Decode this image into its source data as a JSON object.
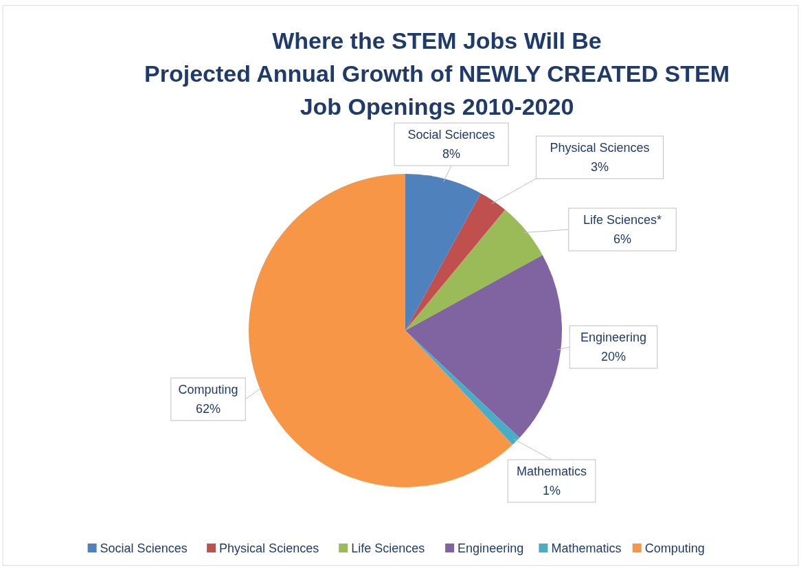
{
  "chart_data": {
    "type": "pie",
    "title": "Where the STEM Jobs Will Be",
    "subtitle": "Projected Annual Growth of NEWLY CREATED STEM Job Openings 2010-2020",
    "categories": [
      "Social Sciences",
      "Physical Sciences",
      "Life Sciences",
      "Engineering",
      "Mathematics",
      "Computing"
    ],
    "values": [
      8,
      3,
      6,
      20,
      1,
      62
    ],
    "colors": [
      "#4f81bd",
      "#c0504d",
      "#9bbb59",
      "#8064a2",
      "#4bacc6",
      "#f79646"
    ],
    "value_labels": [
      "Social Sciences\n8%",
      "Physical Sciences\n3%",
      "Life Sciences*\n6%",
      "Engineering\n20%",
      "Mathematics\n1%",
      "Computing\n62%"
    ],
    "legend": "bottom"
  }
}
